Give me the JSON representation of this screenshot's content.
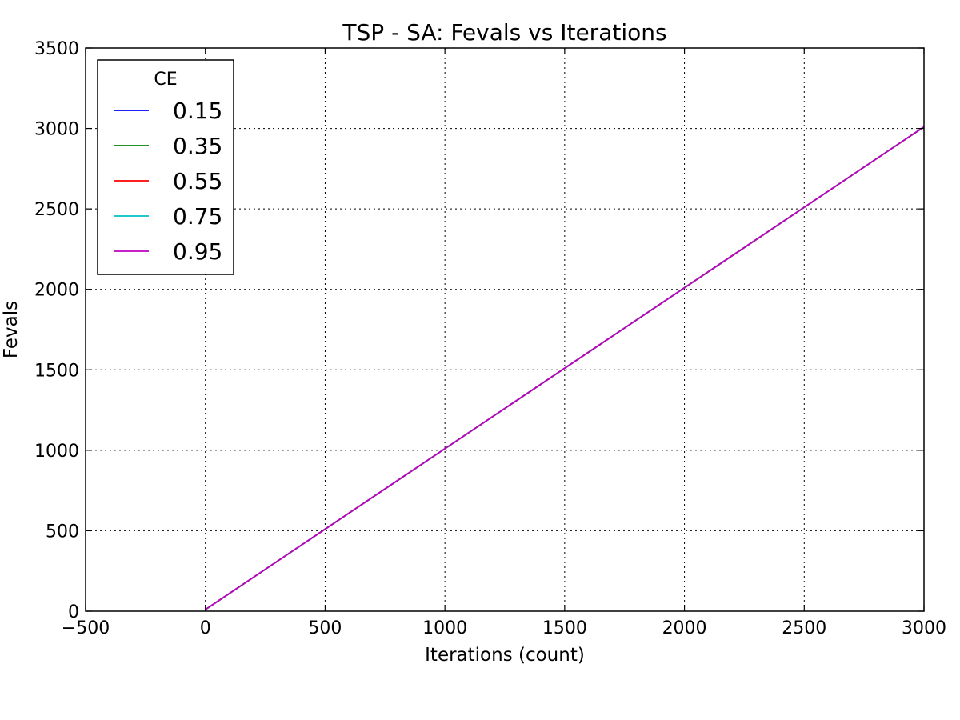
{
  "chart_data": {
    "type": "line",
    "title": "TSP - SA: Fevals vs Iterations",
    "xlabel": "Iterations (count)",
    "ylabel": "Fevals",
    "xlim": [
      -500,
      3000
    ],
    "ylim": [
      0,
      3500
    ],
    "xticks": [
      -500,
      0,
      500,
      1000,
      1500,
      2000,
      2500,
      3000
    ],
    "xtick_labels": [
      "−500",
      "0",
      "500",
      "1000",
      "1500",
      "2000",
      "2500",
      "3000"
    ],
    "yticks": [
      0,
      500,
      1000,
      1500,
      2000,
      2500,
      3000,
      3500
    ],
    "ytick_labels": [
      "0",
      "500",
      "1000",
      "1500",
      "2000",
      "2500",
      "3000",
      "3500"
    ],
    "grid": true,
    "legend": {
      "title": "CE",
      "placement": "top-left"
    },
    "series": [
      {
        "name": "0.15",
        "color": "#0000ff",
        "x": [
          0,
          3000
        ],
        "y": [
          10,
          3010
        ]
      },
      {
        "name": "0.35",
        "color": "#008000",
        "x": [
          0,
          3000
        ],
        "y": [
          10,
          3010
        ]
      },
      {
        "name": "0.55",
        "color": "#ff0000",
        "x": [
          0,
          3000
        ],
        "y": [
          10,
          3010
        ]
      },
      {
        "name": "0.75",
        "color": "#00bfbf",
        "x": [
          0,
          3000
        ],
        "y": [
          10,
          3010
        ]
      },
      {
        "name": "0.95",
        "color": "#bf00bf",
        "x": [
          0,
          3000
        ],
        "y": [
          10,
          3010
        ]
      }
    ]
  }
}
